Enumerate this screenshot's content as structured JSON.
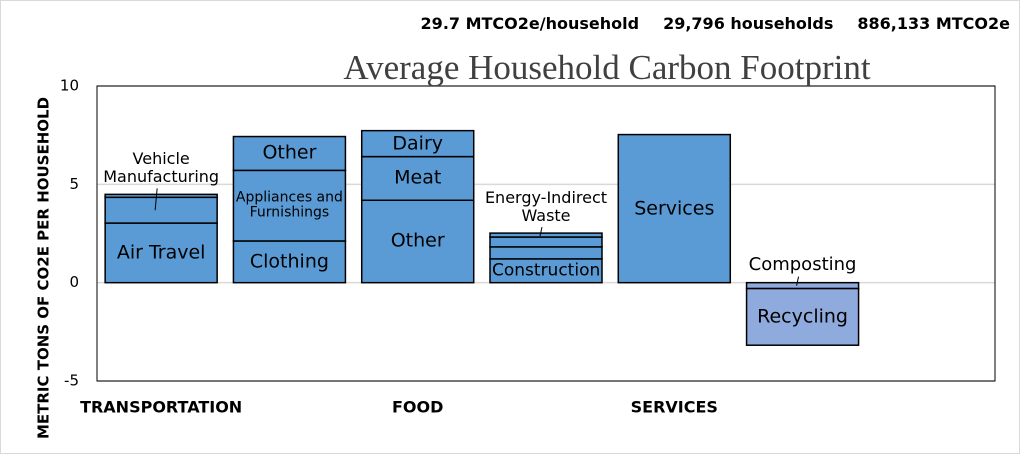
{
  "chart_data": {
    "type": "stacked_bar",
    "title": "Average Household Carbon Footprint",
    "stats": [
      "29.7 MTCO2e/household",
      "29,796 households",
      "886,133 MTCO2e"
    ],
    "y_label": "METRIC TONS OF CO2E PER HOUSEHOLD",
    "categories": [
      "TRANSPORTATION",
      null,
      "FOOD",
      null,
      "SERVICES",
      null
    ],
    "bars": [
      {
        "segments": [
          {
            "label": "Air Travel",
            "value": 3.03
          },
          {
            "label": "Vehicle Manufacturing",
            "value": 1.31,
            "callout": true
          },
          {
            "value": 0.15
          }
        ]
      },
      {
        "segments": [
          {
            "label": "Clothing",
            "value": 2.12
          },
          {
            "label": "Appliances and Furnishings",
            "value": 3.59
          },
          {
            "label": "Other",
            "value": 1.72
          }
        ]
      },
      {
        "segments": [
          {
            "label": "Other",
            "value": 4.19
          },
          {
            "label": "Meat",
            "value": 2.22
          },
          {
            "label": "Dairy",
            "value": 1.32
          }
        ]
      },
      {
        "segments": [
          {
            "label": "Construction",
            "value": 1.21
          },
          {
            "value": 0.61
          },
          {
            "value": 0.5
          },
          {
            "label": "Energy-Indirect Waste",
            "value": 0.2,
            "callout": true
          }
        ]
      },
      {
        "segments": [
          {
            "label": "Services",
            "value": 7.53
          }
        ]
      },
      {
        "color": "#8faadc",
        "segments": [
          {
            "label": "Composting",
            "value": -0.3,
            "callout": true
          },
          {
            "label": "Recycling",
            "value": -2.88
          }
        ]
      }
    ],
    "color": "#5b9bd5",
    "ylim": [
      -5,
      10
    ],
    "yticks": [
      -5,
      0,
      5,
      10
    ],
    "grid": true
  }
}
